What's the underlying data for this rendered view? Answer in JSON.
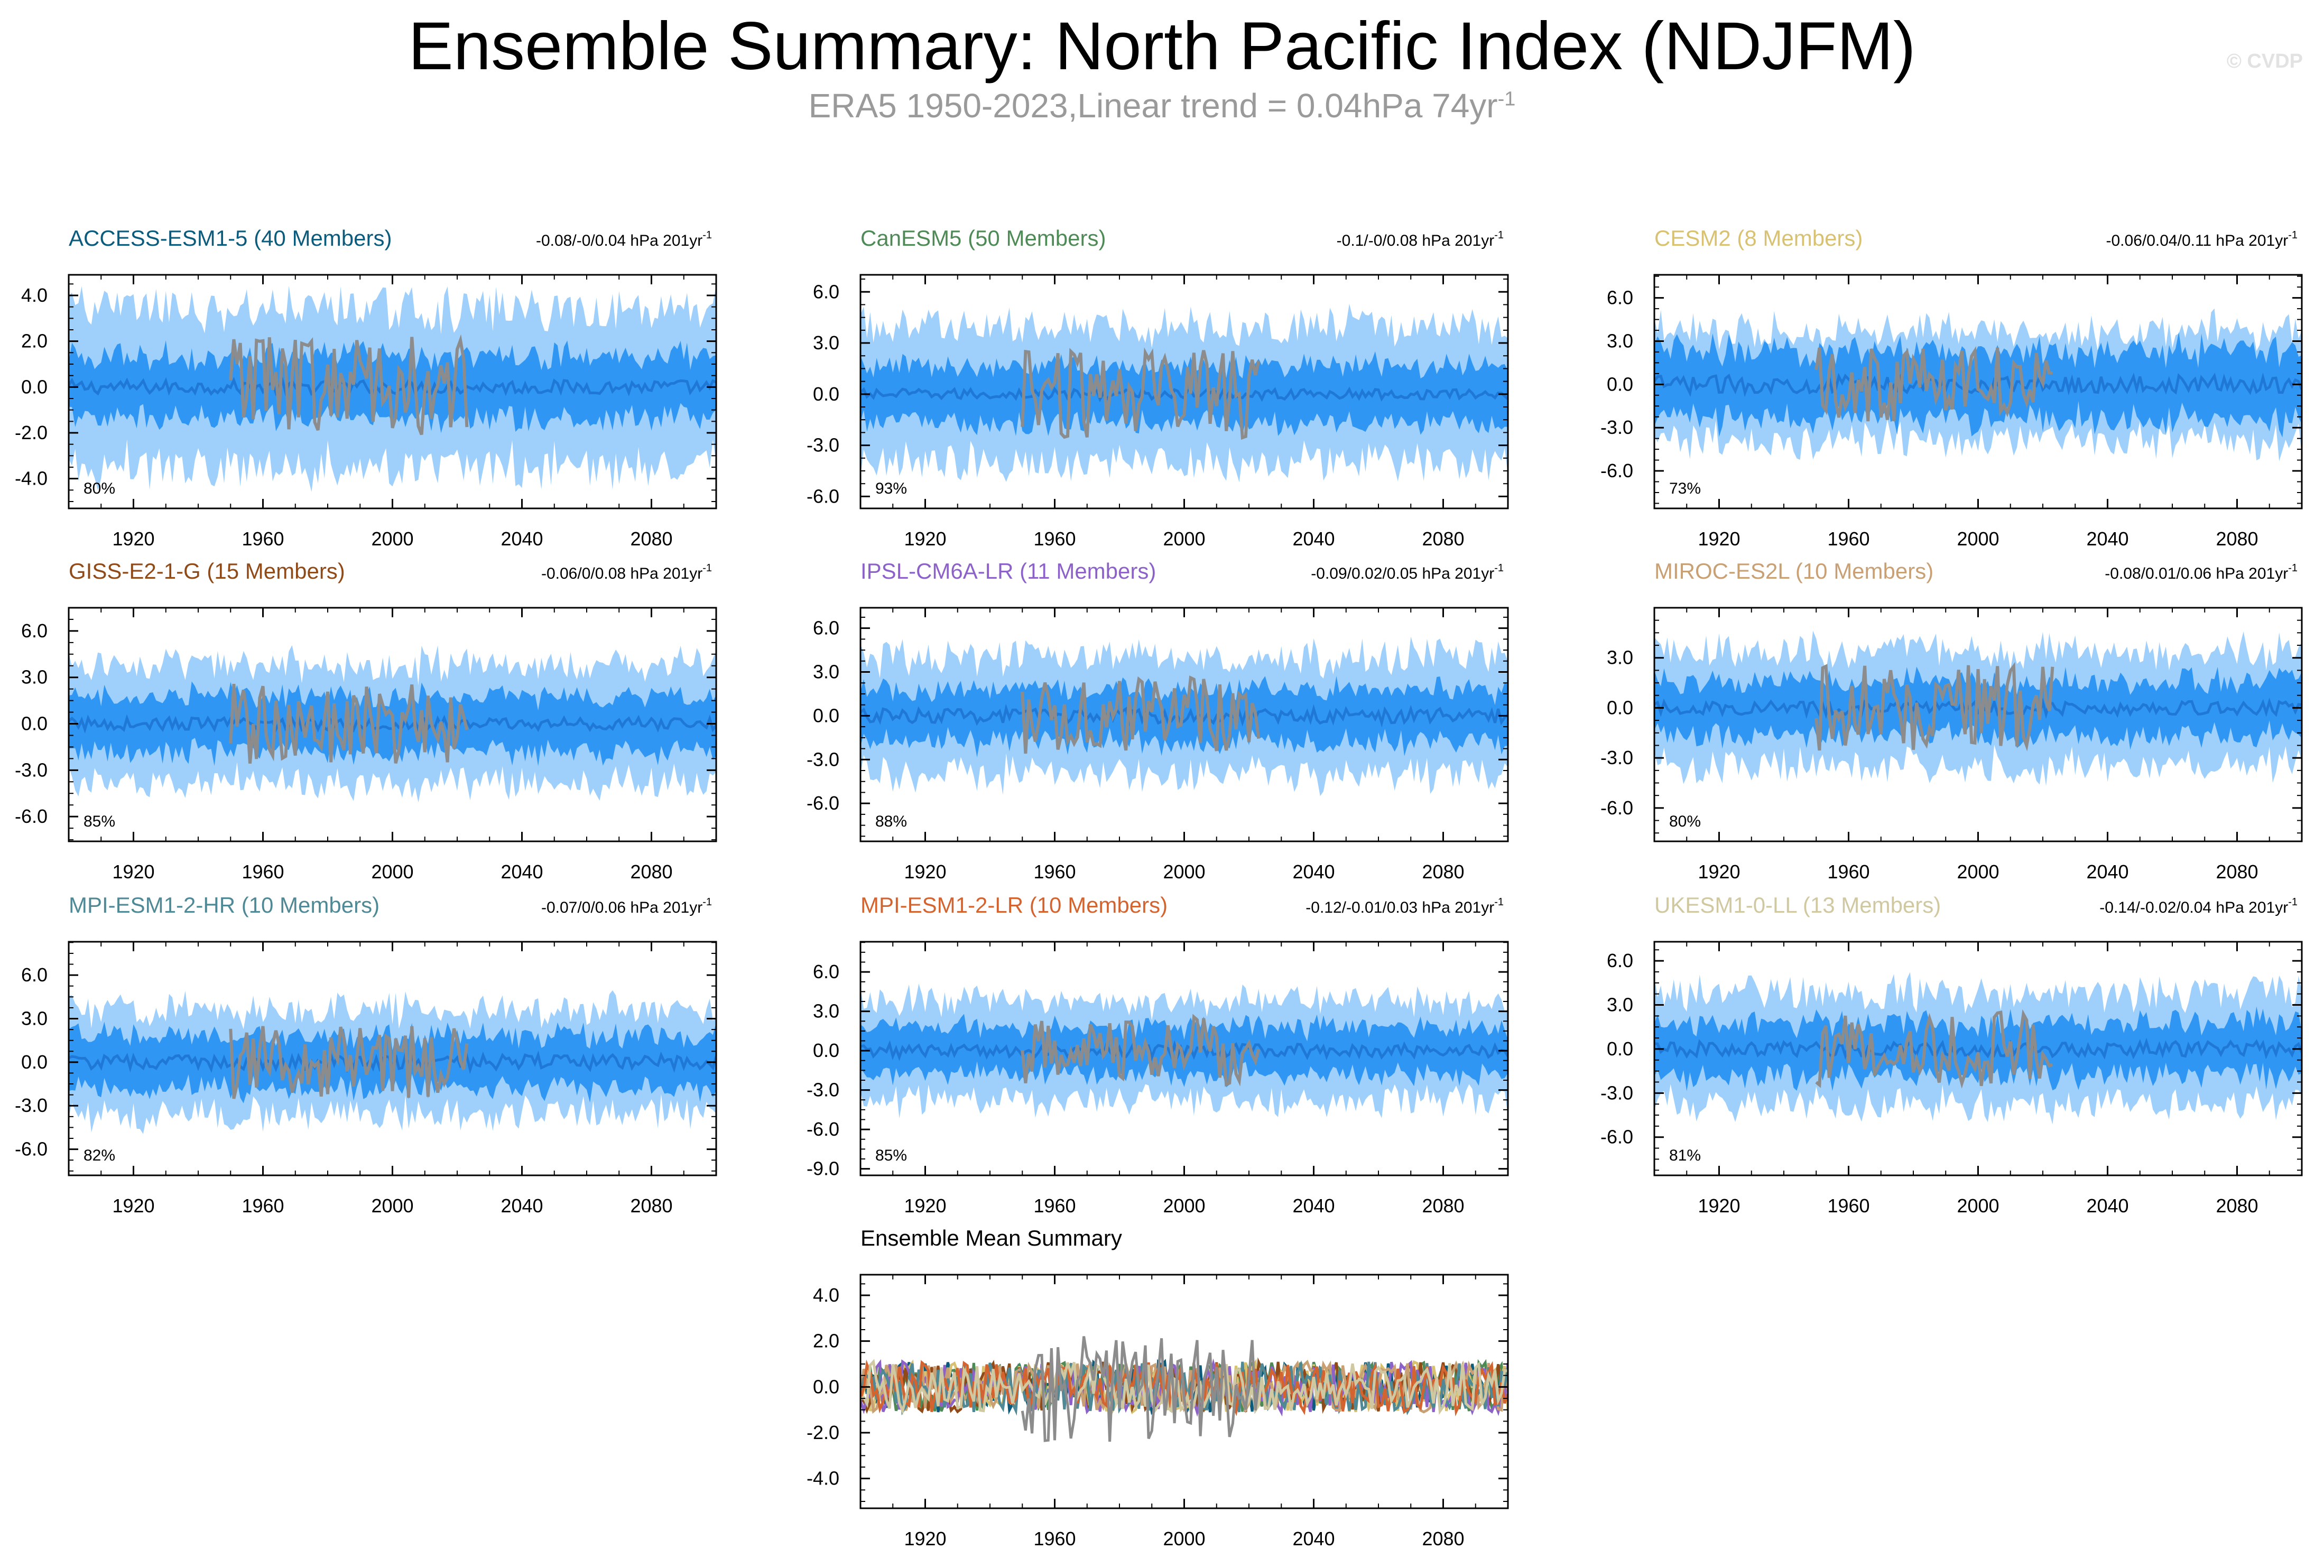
{
  "header": {
    "title": "Ensemble Summary: North Pacific Index (NDJFM)",
    "subtitle_main": "ERA5 1950-2023,Linear trend = 0.04hPa 74yr",
    "subtitle_sup": "-1",
    "watermark": "© CVDP"
  },
  "colors": {
    "band_outer": "#9fd0fb",
    "band_inner": "#2f97f3",
    "ensemble_mean": "#1f78d6",
    "observations": "#8c8c8c",
    "axis": "#000000"
  },
  "chart_data": [
    {
      "type": "area",
      "title": "ACCESS-ESM1-5 (40 Members)",
      "title_color": "#0b5b7c",
      "stat_text": "-0.08/-0/0.04 hPa 201yr",
      "stat_sup": "-1",
      "percent": "80%",
      "x_ticks": [
        "1920",
        "1960",
        "2000",
        "2040",
        "2080"
      ],
      "y_ticks": [
        "4.0",
        "2.0",
        "0.0",
        "-2.0",
        "-4.0"
      ],
      "ylim": [
        -5.3,
        4.9
      ],
      "xlim": [
        1900,
        2100
      ],
      "series": [
        {
          "kind": "5-95% range",
          "amp": 3.6
        },
        {
          "kind": "25-75% range",
          "amp": 1.5
        },
        {
          "kind": "ensemble mean",
          "amp": 0.3
        },
        {
          "kind": "observations",
          "x_range": [
            1950,
            2023
          ],
          "amp": 2.2
        }
      ]
    },
    {
      "type": "area",
      "title": "CanESM5 (50 Members)",
      "title_color": "#4e8a55",
      "stat_text": "-0.1/-0/0.08 hPa 201yr",
      "stat_sup": "-1",
      "percent": "93%",
      "x_ticks": [
        "1920",
        "1960",
        "2000",
        "2040",
        "2080"
      ],
      "y_ticks": [
        "6.0",
        "3.0",
        "0.0",
        "-3.0",
        "-6.0"
      ],
      "ylim": [
        -6.7,
        7.0
      ],
      "xlim": [
        1900,
        2100
      ],
      "series": [
        {
          "kind": "5-95% range",
          "amp": 4.2
        },
        {
          "kind": "25-75% range",
          "amp": 1.9
        },
        {
          "kind": "ensemble mean",
          "amp": 0.3
        },
        {
          "kind": "observations",
          "x_range": [
            1950,
            2023
          ],
          "amp": 2.6
        }
      ]
    },
    {
      "type": "area",
      "title": "CESM2 (8 Members)",
      "title_color": "#d8c272",
      "stat_text": "-0.06/0.04/0.11 hPa 201yr",
      "stat_sup": "-1",
      "percent": "73%",
      "x_ticks": [
        "1920",
        "1960",
        "2000",
        "2040",
        "2080"
      ],
      "y_ticks": [
        "6.0",
        "3.0",
        "0.0",
        "-3.0",
        "-6.0"
      ],
      "ylim": [
        -8.6,
        7.6
      ],
      "xlim": [
        1900,
        2100
      ],
      "series": [
        {
          "kind": "5-95% range",
          "amp": 4.0
        },
        {
          "kind": "25-75% range",
          "amp": 2.6
        },
        {
          "kind": "ensemble mean",
          "amp": 0.6
        },
        {
          "kind": "observations",
          "x_range": [
            1950,
            2023
          ],
          "amp": 2.6
        }
      ]
    },
    {
      "type": "area",
      "title": "GISS-E2-1-G (15 Members)",
      "title_color": "#8f4a17",
      "stat_text": "-0.06/0/0.08 hPa 201yr",
      "stat_sup": "-1",
      "percent": "85%",
      "x_ticks": [
        "1920",
        "1960",
        "2000",
        "2040",
        "2080"
      ],
      "y_ticks": [
        "6.0",
        "3.0",
        "0.0",
        "-3.0",
        "-6.0"
      ],
      "ylim": [
        -7.6,
        7.5
      ],
      "xlim": [
        1900,
        2100
      ],
      "series": [
        {
          "kind": "5-95% range",
          "amp": 4.0
        },
        {
          "kind": "25-75% range",
          "amp": 2.0
        },
        {
          "kind": "ensemble mean",
          "amp": 0.4
        },
        {
          "kind": "observations",
          "x_range": [
            1950,
            2023
          ],
          "amp": 2.6
        }
      ]
    },
    {
      "type": "area",
      "title": "IPSL-CM6A-LR (11 Members)",
      "title_color": "#8c62c9",
      "stat_text": "-0.09/0.02/0.05 hPa 201yr",
      "stat_sup": "-1",
      "percent": "88%",
      "x_ticks": [
        "1920",
        "1960",
        "2000",
        "2040",
        "2080"
      ],
      "y_ticks": [
        "6.0",
        "3.0",
        "0.0",
        "-3.0",
        "-6.0"
      ],
      "ylim": [
        -8.6,
        7.4
      ],
      "xlim": [
        1900,
        2100
      ],
      "series": [
        {
          "kind": "5-95% range",
          "amp": 4.2
        },
        {
          "kind": "25-75% range",
          "amp": 2.0
        },
        {
          "kind": "ensemble mean",
          "amp": 0.5
        },
        {
          "kind": "observations",
          "x_range": [
            1950,
            2023
          ],
          "amp": 2.6
        }
      ]
    },
    {
      "type": "area",
      "title": "MIROC-ES2L (10 Members)",
      "title_color": "#c8a074",
      "stat_text": "-0.08/0.01/0.06 hPa 201yr",
      "stat_sup": "-1",
      "percent": "80%",
      "x_ticks": [
        "1920",
        "1960",
        "2000",
        "2040",
        "2080"
      ],
      "y_ticks": [
        "3.0",
        "0.0",
        "-3.0",
        "-6.0"
      ],
      "ylim": [
        -8.0,
        6.0
      ],
      "xlim": [
        1900,
        2100
      ],
      "series": [
        {
          "kind": "5-95% range",
          "amp": 3.6
        },
        {
          "kind": "25-75% range",
          "amp": 1.8
        },
        {
          "kind": "ensemble mean",
          "amp": 0.4
        },
        {
          "kind": "observations",
          "x_range": [
            1950,
            2023
          ],
          "amp": 2.6
        }
      ]
    },
    {
      "type": "area",
      "title": "MPI-ESM1-2-HR (10 Members)",
      "title_color": "#4f8996",
      "stat_text": "-0.07/0/0.06 hPa 201yr",
      "stat_sup": "-1",
      "percent": "82%",
      "x_ticks": [
        "1920",
        "1960",
        "2000",
        "2040",
        "2080"
      ],
      "y_ticks": [
        "6.0",
        "3.0",
        "0.0",
        "-3.0",
        "-6.0"
      ],
      "ylim": [
        -7.8,
        8.3
      ],
      "xlim": [
        1900,
        2100
      ],
      "series": [
        {
          "kind": "5-95% range",
          "amp": 3.8
        },
        {
          "kind": "25-75% range",
          "amp": 2.0
        },
        {
          "kind": "ensemble mean",
          "amp": 0.5
        },
        {
          "kind": "observations",
          "x_range": [
            1950,
            2023
          ],
          "amp": 2.6
        }
      ]
    },
    {
      "type": "area",
      "title": "MPI-ESM1-2-LR (10 Members)",
      "title_color": "#d36430",
      "stat_text": "-0.12/-0.01/0.03 hPa 201yr",
      "stat_sup": "-1",
      "percent": "85%",
      "x_ticks": [
        "1920",
        "1960",
        "2000",
        "2040",
        "2080"
      ],
      "y_ticks": [
        "6.0",
        "3.0",
        "0.0",
        "-3.0",
        "-6.0",
        "-9.0"
      ],
      "ylim": [
        -9.5,
        8.3
      ],
      "xlim": [
        1900,
        2100
      ],
      "series": [
        {
          "kind": "5-95% range",
          "amp": 4.0
        },
        {
          "kind": "25-75% range",
          "amp": 2.0
        },
        {
          "kind": "ensemble mean",
          "amp": 0.5
        },
        {
          "kind": "observations",
          "x_range": [
            1950,
            2023
          ],
          "amp": 2.6
        }
      ]
    },
    {
      "type": "area",
      "title": "UKESM1-0-LL (13 Members)",
      "title_color": "#d0c8a0",
      "stat_text": "-0.14/-0.02/0.04 hPa 201yr",
      "stat_sup": "-1",
      "percent": "81%",
      "x_ticks": [
        "1920",
        "1960",
        "2000",
        "2040",
        "2080"
      ],
      "y_ticks": [
        "6.0",
        "3.0",
        "0.0",
        "-3.0",
        "-6.0"
      ],
      "ylim": [
        -8.6,
        7.3
      ],
      "xlim": [
        1900,
        2100
      ],
      "series": [
        {
          "kind": "5-95% range",
          "amp": 4.0
        },
        {
          "kind": "25-75% range",
          "amp": 2.0
        },
        {
          "kind": "ensemble mean",
          "amp": 0.5
        },
        {
          "kind": "observations",
          "x_range": [
            1950,
            2023
          ],
          "amp": 2.6
        }
      ]
    },
    {
      "type": "line",
      "title": "Ensemble Mean Summary",
      "title_color": "#000000",
      "x_ticks": [
        "1920",
        "1960",
        "2000",
        "2040",
        "2080"
      ],
      "y_ticks": [
        "4.0",
        "2.0",
        "0.0",
        "-2.0",
        "-4.0"
      ],
      "ylim": [
        -5.3,
        4.9
      ],
      "xlim": [
        1900,
        2100
      ],
      "series_colors": [
        "#0b5b7c",
        "#4e8a55",
        "#d8c272",
        "#8f4a17",
        "#8c62c9",
        "#c8a074",
        "#4f8996",
        "#d36430",
        "#d0c8a0",
        "#8c8c8c"
      ]
    }
  ]
}
